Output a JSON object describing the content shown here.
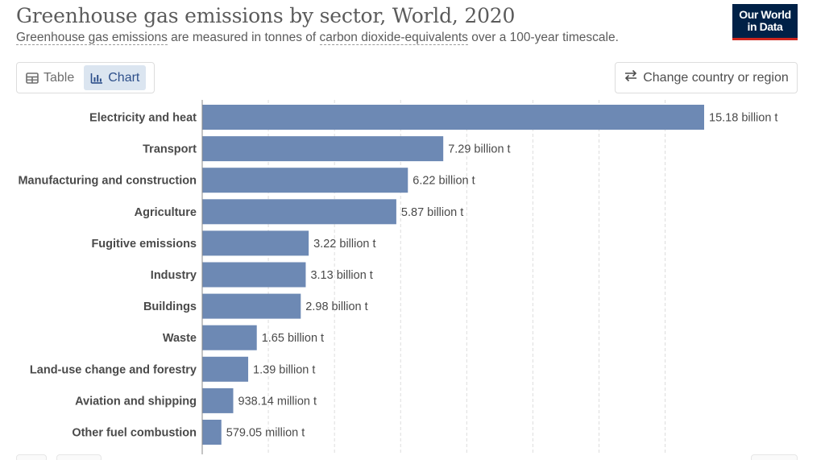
{
  "header": {
    "title": "Greenhouse gas emissions by sector, World, 2020",
    "subtitle_link1": "Greenhouse gas emissions",
    "subtitle_mid": " are measured in tonnes of ",
    "subtitle_link2": "carbon dioxide-equivalents",
    "subtitle_end": " over a 100-year timescale."
  },
  "logo": {
    "line1": "Our World",
    "line2": "in Data"
  },
  "tabs": [
    {
      "label": "Table",
      "icon": "table-icon",
      "active": false
    },
    {
      "label": "Chart",
      "icon": "bar-chart-icon",
      "active": true
    }
  ],
  "change_button": {
    "label": "Change country or region",
    "icon": "swap-arrows-icon"
  },
  "colors": {
    "bar": "#6d89b4",
    "grid": "#dddddd",
    "label": "#4a4a4a"
  },
  "chart_data": {
    "type": "bar",
    "orientation": "horizontal",
    "unit": "tonnes",
    "categories": [
      "Electricity and heat",
      "Transport",
      "Manufacturing and construction",
      "Agriculture",
      "Fugitive emissions",
      "Industry",
      "Buildings",
      "Waste",
      "Land-use change and forestry",
      "Aviation and shipping",
      "Other fuel combustion"
    ],
    "values": [
      15.18,
      7.29,
      6.22,
      5.87,
      3.22,
      3.13,
      2.98,
      1.65,
      1.39,
      0.93814,
      0.57905
    ],
    "value_units": "billion tonnes",
    "labels": [
      "15.18 billion t",
      "7.29 billion t",
      "6.22 billion t",
      "5.87 billion t",
      "3.22 billion t",
      "3.13 billion t",
      "2.98 billion t",
      "1.65 billion t",
      "1.39 billion t",
      "938.14 million t",
      "579.05 million t"
    ],
    "xlim": [
      0,
      15.18
    ],
    "gridlines": [
      2,
      4,
      6,
      8,
      10,
      12,
      14
    ],
    "grid": true,
    "title": "",
    "xlabel": "",
    "ylabel": ""
  }
}
